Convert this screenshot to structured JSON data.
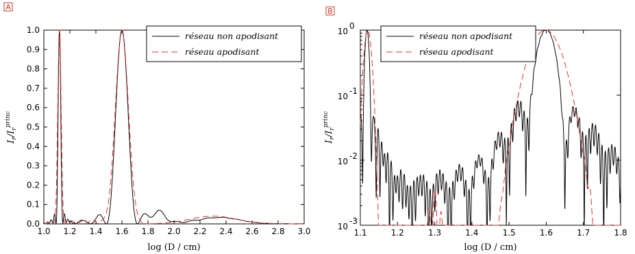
{
  "panels": [
    {
      "label": "A",
      "ylabel_main": "I",
      "ylabel_sub1": "r",
      "ylabel_mid": "/I",
      "ylabel_sub2": "r",
      "ylabel_sup": "princ",
      "xlabel": "log (D / cm)",
      "xticks": [
        "1.0",
        "1.2",
        "1.4",
        "1.6",
        "1.8",
        "2.0",
        "2.2",
        "2.4",
        "2.6",
        "2.8",
        "3.0"
      ],
      "yticks": [
        "0.0",
        "0.1",
        "0.2",
        "0.3",
        "0.4",
        "0.5",
        "0.6",
        "0.7",
        "0.8",
        "0.9",
        "1.0"
      ],
      "legend": [
        "réseau non apodisant",
        "réseau apodisant"
      ]
    },
    {
      "label": "B",
      "ylabel_main": "I",
      "ylabel_sub1": "r",
      "ylabel_mid": "/I",
      "ylabel_sub2": "r",
      "ylabel_sup": "princ",
      "xlabel": "log (D / cm)",
      "xticks": [
        "1.1",
        "1.2",
        "1.3",
        "1.4",
        "1.5",
        "1.6",
        "1.7",
        "1.8"
      ],
      "yticks_base": [
        "10",
        "10",
        "10",
        "10"
      ],
      "yticks_exp": [
        "0",
        "-1",
        "-2",
        "-3"
      ],
      "legend": [
        "réseau non apodisant",
        "réseau apodisant"
      ]
    }
  ],
  "colors": {
    "solid": "#000000",
    "dashed": "#e03030"
  },
  "chart_data": [
    {
      "type": "line",
      "xlabel": "log (D / cm)",
      "ylabel": "I_r/I_r^princ",
      "xlim": [
        1.0,
        3.0
      ],
      "ylim": [
        0,
        1.0
      ],
      "grid": false,
      "legend_position": "top-right",
      "series": [
        {
          "name": "réseau non apodisant",
          "style": "solid",
          "peaks": [
            {
              "x": 1.12,
              "height": 1.0,
              "halfwidth": 0.022
            },
            {
              "x": 1.6,
              "height": 1.0,
              "halfwidth": 0.055
            }
          ]
        },
        {
          "name": "réseau apodisant",
          "style": "dashed",
          "peaks": [
            {
              "x": 1.12,
              "height": 1.0,
              "halfwidth": 0.028
            },
            {
              "x": 1.6,
              "height": 1.0,
              "halfwidth": 0.07
            }
          ]
        }
      ]
    },
    {
      "type": "line",
      "xlabel": "log (D / cm)",
      "ylabel": "I_r/I_r^princ",
      "xlim": [
        1.1,
        1.8
      ],
      "ylim": [
        0.001,
        1
      ],
      "yscale": "log",
      "grid": false,
      "legend_position": "top-right",
      "series": [
        {
          "name": "réseau non apodisant",
          "style": "solid",
          "peaks": [
            {
              "x": 1.118,
              "height": 1.0
            },
            {
              "x": 1.6,
              "height": 1.0
            }
          ]
        },
        {
          "name": "réseau apodisant",
          "style": "dashed",
          "peaks": [
            {
              "x": 1.12,
              "height": 1.0
            },
            {
              "x": 1.598,
              "height": 1.0
            }
          ]
        }
      ]
    }
  ]
}
